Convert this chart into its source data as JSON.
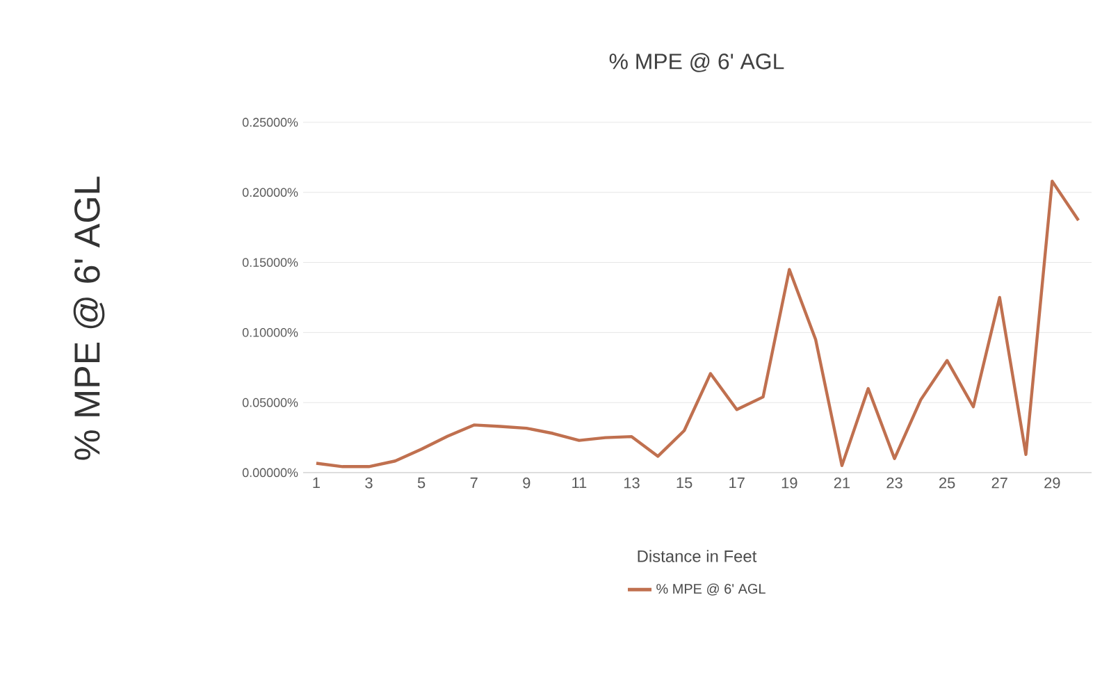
{
  "chart_data": {
    "type": "line",
    "title": "% MPE @ 6'  AGL",
    "xlabel": "Distance in Feet",
    "ylabel": "% MPE @ 6'  AGL",
    "categories": [
      "1",
      null,
      "3",
      null,
      "5",
      null,
      "7",
      null,
      "9",
      null,
      "11",
      null,
      "13",
      null,
      "15",
      null,
      "17",
      null,
      "19",
      null,
      "21",
      null,
      "23",
      null,
      "25",
      null,
      "27",
      null,
      "29",
      null
    ],
    "series": [
      {
        "name": "% MPE @ 6'  AGL",
        "color": "#c0704f",
        "values": [
          0.0067,
          0.0043,
          0.0043,
          0.0083,
          0.0167,
          0.026,
          0.034,
          0.033,
          0.0317,
          0.028,
          0.023,
          0.025,
          0.0257,
          0.0117,
          0.03,
          0.0707,
          0.045,
          0.054,
          0.145,
          0.095,
          0.005,
          0.06,
          0.01,
          0.052,
          0.08,
          0.047,
          0.125,
          0.013,
          0.208,
          0.18
        ]
      }
    ],
    "ylim": [
      0,
      0.25
    ],
    "yticks": [
      {
        "value": 0,
        "label": "0.00000%"
      },
      {
        "value": 0.05,
        "label": "0.05000%"
      },
      {
        "value": 0.1,
        "label": "0.10000%"
      },
      {
        "value": 0.15,
        "label": "0.15000%"
      },
      {
        "value": 0.2,
        "label": "0.20000%"
      },
      {
        "value": 0.25,
        "label": "0.25000%"
      }
    ],
    "grid": "y",
    "legend": "bottom",
    "marker": "none",
    "line_style": "solid"
  }
}
